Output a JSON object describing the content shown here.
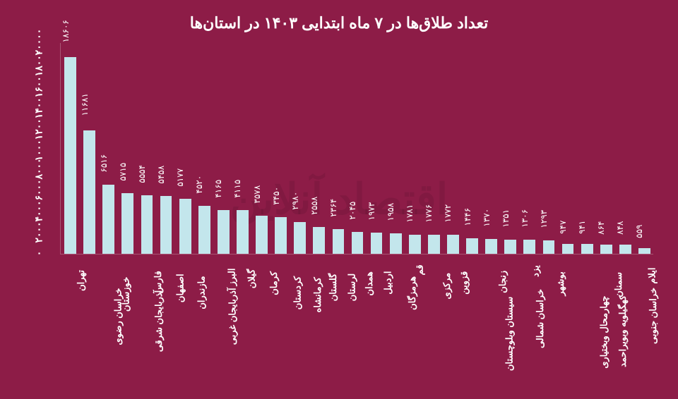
{
  "chart": {
    "type": "bar",
    "title": "تعداد طلاق‌ها در ۷ ماه ابتدایی ۱۴۰۳ در استان‌ها",
    "watermark": "اقتصاد آنلاین",
    "background_color": "#8d1c47",
    "bar_color": "#c3e6ec",
    "text_color": "#ffffff",
    "title_fontsize": 22,
    "axis_fontsize": 14,
    "value_fontsize": 12,
    "xlabel_fontsize": 13,
    "ylim_min": 0,
    "ylim_max": 20000,
    "ytick_step": 2000,
    "yticks": [
      {
        "value": 0,
        "label": "۰"
      },
      {
        "value": 2000,
        "label": "۲۰۰۰"
      },
      {
        "value": 4000,
        "label": "۴۰۰۰"
      },
      {
        "value": 6000,
        "label": "۶۰۰۰"
      },
      {
        "value": 8000,
        "label": "۸۰۰۰"
      },
      {
        "value": 10000,
        "label": "۱۰۰۰۰"
      },
      {
        "value": 12000,
        "label": "۱۲۰۰۰"
      },
      {
        "value": 14000,
        "label": "۱۴۰۰۰"
      },
      {
        "value": 16000,
        "label": "۱۶۰۰۰"
      },
      {
        "value": 18000,
        "label": "۱۸۰۰۰"
      },
      {
        "value": 20000,
        "label": "۲۰۰۰۰"
      }
    ],
    "data": [
      {
        "category": "تهران",
        "value": 18606,
        "value_label": "۱۸۶۰۶"
      },
      {
        "category": "خراسان رضوی",
        "value": 11681,
        "value_label": "۱۱۶۸۱"
      },
      {
        "category": "خوزستان",
        "value": 6516,
        "value_label": "۶۵۱۶"
      },
      {
        "category": "آذربایجان شرقی",
        "value": 5715,
        "value_label": "۵۷۱۵"
      },
      {
        "category": "فارس",
        "value": 5554,
        "value_label": "۵۵۵۴"
      },
      {
        "category": "اصفهان",
        "value": 5458,
        "value_label": "۵۴۵۸"
      },
      {
        "category": "مازندران",
        "value": 5177,
        "value_label": "۵۱۷۷"
      },
      {
        "category": "آذربایجان غربی",
        "value": 4520,
        "value_label": "۴۵۲۰"
      },
      {
        "category": "البرز",
        "value": 4165,
        "value_label": "۴۱۶۵"
      },
      {
        "category": "گیلان",
        "value": 4115,
        "value_label": "۴۱۱۵"
      },
      {
        "category": "کرمان",
        "value": 3578,
        "value_label": "۳۵۷۸"
      },
      {
        "category": "کردستان",
        "value": 3450,
        "value_label": "۳۴۵۰"
      },
      {
        "category": "کرمانشاه",
        "value": 2980,
        "value_label": "۲۹۸۰"
      },
      {
        "category": "گلستان",
        "value": 2558,
        "value_label": "۲۵۵۸"
      },
      {
        "category": "لرستان",
        "value": 2364,
        "value_label": "۲۳۶۴"
      },
      {
        "category": "همدان",
        "value": 2045,
        "value_label": "۲۰۴۵"
      },
      {
        "category": "اردبیل",
        "value": 1973,
        "value_label": "۱۹۷۳"
      },
      {
        "category": "هرمزگان",
        "value": 1958,
        "value_label": "۱۹۵۸"
      },
      {
        "category": "قم",
        "value": 1781,
        "value_label": "۱۷۸۱"
      },
      {
        "category": "مرکزی",
        "value": 1776,
        "value_label": "۱۷۷۶"
      },
      {
        "category": "قزوین",
        "value": 1772,
        "value_label": "۱۷۷۲"
      },
      {
        "category": "سیستان وبلوچستان",
        "value": 1446,
        "value_label": "۱۴۴۶"
      },
      {
        "category": "زنجان",
        "value": 1370,
        "value_label": "۱۳۷۰"
      },
      {
        "category": "خراسان شمالی",
        "value": 1351,
        "value_label": "۱۳۵۱"
      },
      {
        "category": "یزد",
        "value": 1306,
        "value_label": "۱۳۰۶"
      },
      {
        "category": "بوشهر",
        "value": 1293,
        "value_label": "۱۲۹۳"
      },
      {
        "category": "چهارمحال وبختیاری",
        "value": 947,
        "value_label": "۹۴۷"
      },
      {
        "category": "کهگیلویه وبویراحمد",
        "value": 941,
        "value_label": "۹۴۱"
      },
      {
        "category": "سمنان",
        "value": 864,
        "value_label": "۸۶۴"
      },
      {
        "category": "خراسان جنوبی",
        "value": 848,
        "value_label": "۸۴۸"
      },
      {
        "category": "ایلام",
        "value": 559,
        "value_label": "۵۵۹"
      }
    ]
  }
}
